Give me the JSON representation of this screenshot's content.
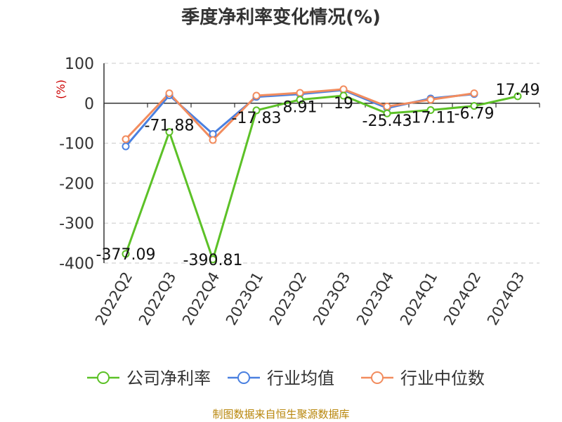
{
  "title": "季度净利率变化情况(%)",
  "source": "制图数据来自恒生聚源数据库",
  "colors": {
    "company": "#5cc127",
    "industry_avg": "#4a80e0",
    "industry_median": "#f28c5e",
    "unit_label": "#cc0000"
  },
  "chart_data": {
    "type": "line",
    "ylabel": "(%)",
    "xlabel": "",
    "ylim": [
      -400,
      100
    ],
    "yticks": [
      100,
      0,
      -100,
      -200,
      -300,
      -400
    ],
    "grid": true,
    "legend_position": "bottom",
    "categories": [
      "2022Q2",
      "2022Q3",
      "2022Q4",
      "2023Q1",
      "2023Q2",
      "2023Q3",
      "2023Q4",
      "2024Q1",
      "2024Q2",
      "2024Q3"
    ],
    "series": [
      {
        "name": "公司净利率",
        "values": [
          -377.09,
          -71.88,
          -390.81,
          -17.83,
          8.91,
          19,
          -25.43,
          -17.11,
          -6.79,
          17.49
        ],
        "labels": [
          "-377.09",
          "-71.88",
          "-390.81",
          "-17.83",
          "8.91",
          "19",
          "-25.43",
          "-17.11",
          "-6.79",
          "17.49"
        ]
      },
      {
        "name": "行业均值",
        "values": [
          -108,
          20,
          -77,
          16,
          23,
          33,
          -12,
          12,
          23,
          null
        ]
      },
      {
        "name": "行业中位数",
        "values": [
          -90,
          25,
          -92,
          19,
          26,
          35,
          -8,
          9,
          25,
          null
        ]
      }
    ]
  }
}
